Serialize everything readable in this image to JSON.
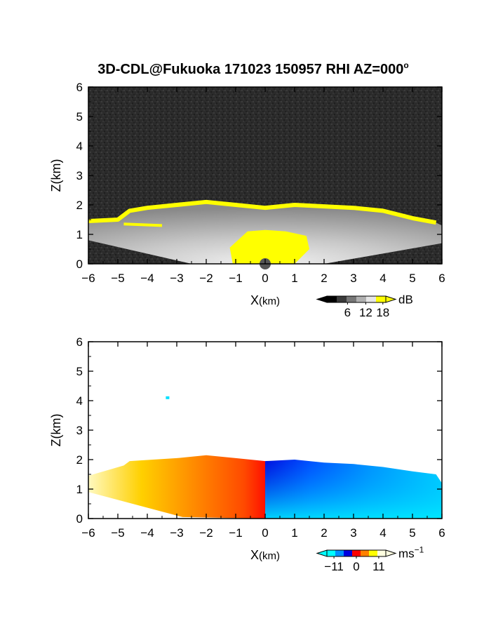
{
  "figure": {
    "title": "3D-CDL@Fukuoka 171023 150957 RHI AZ=000",
    "title_suffix": "o"
  },
  "chart_data": [
    {
      "type": "heatmap",
      "panel": "top",
      "quantity": "backscatter intensity",
      "xlabel_main": "X",
      "xlabel_unit": "(km)",
      "ylabel": "Z(km)",
      "xlim": [
        -6,
        6
      ],
      "ylim": [
        0,
        6
      ],
      "xticks": [
        -6,
        -5,
        -4,
        -3,
        -2,
        -1,
        0,
        1,
        2,
        3,
        4,
        5,
        6
      ],
      "yticks": [
        0,
        1,
        2,
        3,
        4,
        5,
        6
      ],
      "background_color": "#2b2b2b",
      "echo_colors": {
        "low": "#606060",
        "high": "#ececec",
        "saturated": "#ffff00"
      },
      "echo_top_km": [
        {
          "x": -6.0,
          "z": 1.45
        },
        {
          "x": -5.0,
          "z": 1.5
        },
        {
          "x": -4.6,
          "z": 1.8
        },
        {
          "x": -4.0,
          "z": 1.9
        },
        {
          "x": -3.0,
          "z": 2.0
        },
        {
          "x": -2.0,
          "z": 2.1
        },
        {
          "x": -1.0,
          "z": 2.0
        },
        {
          "x": 0.0,
          "z": 1.9
        },
        {
          "x": 1.0,
          "z": 2.0
        },
        {
          "x": 2.0,
          "z": 1.95
        },
        {
          "x": 3.0,
          "z": 1.9
        },
        {
          "x": 4.0,
          "z": 1.8
        },
        {
          "x": 5.0,
          "z": 1.55
        },
        {
          "x": 5.8,
          "z": 1.4
        }
      ],
      "colorbar": {
        "label": "dB",
        "ticks": [
          "6",
          "12",
          "18"
        ],
        "colors": [
          "#000000",
          "#3a3a3a",
          "#777777",
          "#b0b0b0",
          "#e6e6e6",
          "#ffff00"
        ]
      }
    },
    {
      "type": "heatmap",
      "panel": "bottom",
      "quantity": "radial velocity",
      "xlabel_main": "X",
      "xlabel_unit": "(km)",
      "ylabel": "Z(km)",
      "xlim": [
        -6,
        6
      ],
      "ylim": [
        0,
        6
      ],
      "xticks": [
        -6,
        -5,
        -4,
        -3,
        -2,
        -1,
        0,
        1,
        2,
        3,
        4,
        5,
        6
      ],
      "yticks": [
        0,
        1,
        2,
        3,
        4,
        5,
        6
      ],
      "background_color": "#ffffff",
      "echo_top_km": [
        {
          "x": -6.0,
          "z": 1.45
        },
        {
          "x": -4.8,
          "z": 1.8
        },
        {
          "x": -4.6,
          "z": 1.95
        },
        {
          "x": -3.0,
          "z": 2.05
        },
        {
          "x": -2.0,
          "z": 2.15
        },
        {
          "x": -1.0,
          "z": 2.05
        },
        {
          "x": 0.0,
          "z": 1.95
        },
        {
          "x": 1.0,
          "z": 2.0
        },
        {
          "x": 2.0,
          "z": 1.9
        },
        {
          "x": 3.0,
          "z": 1.85
        },
        {
          "x": 4.0,
          "z": 1.75
        },
        {
          "x": 5.0,
          "z": 1.6
        },
        {
          "x": 5.8,
          "z": 1.5
        },
        {
          "x": 6.0,
          "z": 1.2
        }
      ],
      "isolated_echo": {
        "x": -3.3,
        "z": 4.1
      },
      "colorbar": {
        "label": "ms",
        "label_exponent": "−1",
        "ticks": [
          "−11",
          "0",
          "11"
        ],
        "colors": [
          "#00ffff",
          "#0090ff",
          "#0000e0",
          "#ff0000",
          "#ff8000",
          "#ffff00",
          "#ffffe0"
        ]
      }
    }
  ]
}
